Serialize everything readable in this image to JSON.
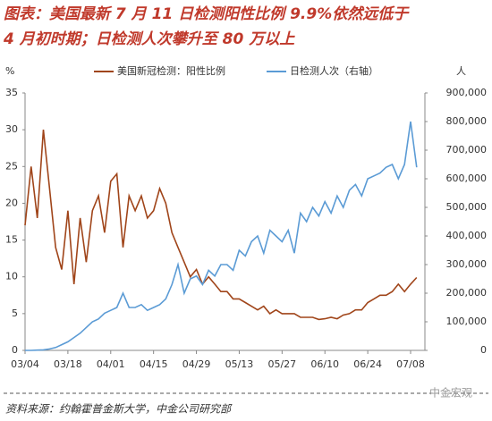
{
  "chart_data": {
    "type": "line",
    "title": [
      "图表：美国最新 7 月 11 日检测阳性比例 9.9%依然远低于",
      "4 月初时期；日检测人次攀升至 80 万以上"
    ],
    "y_label": "%",
    "y2_label": "人",
    "source": "资料来源：约翰霍普金斯大学，中金公司研究部",
    "watermark": "中金宏观",
    "categories": [
      "03/04",
      null,
      null,
      null,
      null,
      null,
      null,
      "03/18",
      null,
      null,
      null,
      null,
      null,
      null,
      "04/01",
      null,
      null,
      null,
      null,
      null,
      null,
      "04/15",
      null,
      null,
      null,
      null,
      null,
      null,
      "04/29",
      null,
      null,
      null,
      null,
      null,
      null,
      "05/13",
      null,
      null,
      null,
      null,
      null,
      null,
      "05/27",
      null,
      null,
      null,
      null,
      null,
      null,
      "06/10",
      null,
      null,
      null,
      null,
      null,
      null,
      "06/24",
      null,
      null,
      null,
      null,
      null,
      null,
      "07/08",
      null
    ],
    "series": [
      {
        "name": "美国新冠检测：阳性比例",
        "color": "#a0451a",
        "values": [
          17,
          25,
          18,
          30,
          22,
          14,
          11,
          19,
          9,
          18,
          12,
          19,
          21,
          16,
          23,
          24,
          14,
          21,
          19,
          21,
          18,
          19,
          22,
          20,
          16,
          14,
          12,
          10,
          11,
          9,
          10,
          9,
          8,
          8,
          7,
          7,
          6.5,
          6,
          5.5,
          6,
          5,
          5.5,
          5,
          5,
          5,
          4.5,
          4.5,
          4.5,
          4.2,
          4.3,
          4.5,
          4.3,
          4.8,
          5,
          5.5,
          5.5,
          6.5,
          7,
          7.5,
          7.5,
          8,
          9,
          8,
          9,
          9.9
        ]
      },
      {
        "name": "日检测人次（右轴）",
        "color": "#5b9bd5",
        "axis": "y2",
        "values": [
          0,
          0,
          1000,
          2000,
          5000,
          10000,
          20000,
          30000,
          45000,
          60000,
          80000,
          100000,
          110000,
          130000,
          140000,
          150000,
          200000,
          150000,
          150000,
          160000,
          140000,
          150000,
          160000,
          180000,
          230000,
          300000,
          200000,
          250000,
          260000,
          230000,
          280000,
          260000,
          300000,
          300000,
          280000,
          350000,
          330000,
          380000,
          400000,
          340000,
          420000,
          400000,
          380000,
          420000,
          340000,
          480000,
          450000,
          500000,
          470000,
          520000,
          480000,
          540000,
          500000,
          560000,
          580000,
          540000,
          600000,
          610000,
          620000,
          640000,
          650000,
          600000,
          650000,
          800000,
          640000
        ]
      }
    ],
    "ylim": [
      0,
      35
    ],
    "yticks": [
      0,
      5,
      10,
      15,
      20,
      25,
      30,
      35
    ],
    "y2lim": [
      0,
      900000
    ],
    "y2ticks": [
      0,
      {
        "value": 100000,
        "label": "100,000"
      },
      {
        "value": 200000,
        "label": "200,000"
      },
      {
        "value": 300000,
        "label": "300,000"
      },
      {
        "value": 400000,
        "label": "400,000"
      },
      {
        "value": 500000,
        "label": "500,000"
      },
      {
        "value": 600000,
        "label": "600,000"
      },
      {
        "value": 700000,
        "label": "700,000"
      },
      {
        "value": 800000,
        "label": "800,000"
      },
      {
        "value": 900000,
        "label": "900,000"
      }
    ],
    "grid": false
  }
}
